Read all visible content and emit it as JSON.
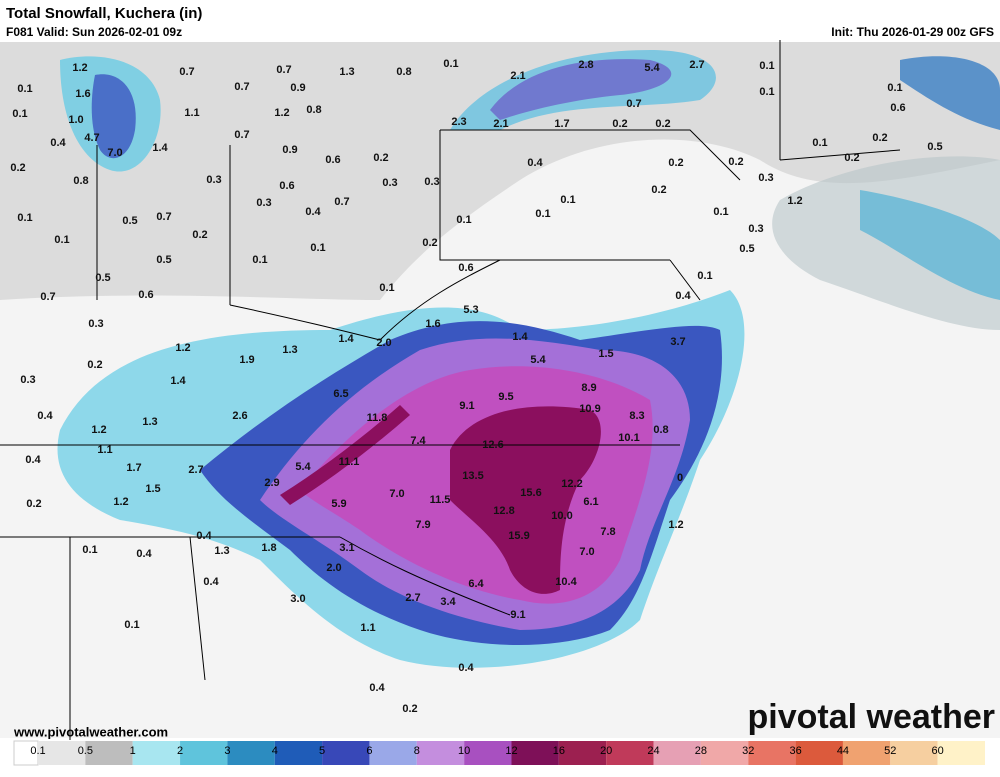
{
  "header": {
    "title": "Total Snowfall, Kuchera (in)",
    "valid": "F081 Valid: Sun 2026-02-01 09z",
    "init": "Init: Thu 2026-01-29 00z GFS"
  },
  "map": {
    "labels": [
      "1.2",
      "0.7",
      "0.7",
      "1.3",
      "0.8",
      "0.1",
      "2.1",
      "2.8",
      "5.4",
      "2.7",
      "0.1",
      "0.1",
      "1.6",
      "0.7",
      "0.9",
      "0.1",
      "0.1",
      "0.1",
      "1.0",
      "1.1",
      "1.2",
      "0.8",
      "0.7",
      "0.6",
      "0.4",
      "4.7",
      "2.3",
      "2.1",
      "1.7",
      "0.2",
      "0.2",
      "7.0",
      "1.4",
      "0.7",
      "0.9",
      "0.6",
      "0.2",
      "0.2",
      "0.1",
      "0.2",
      "0.5",
      "0.2",
      "0.8",
      "0.3",
      "0.6",
      "0.3",
      "0.3",
      "0.4",
      "0.2",
      "0.2",
      "0.3",
      "0.2",
      "0.1",
      "0.3",
      "0.4",
      "0.7",
      "1.2",
      "0.1",
      "0.5",
      "0.7",
      "0.1",
      "0.1",
      "0.1",
      "0.3",
      "0.2",
      "0.1",
      "0.1",
      "0.2",
      "0.5",
      "0.1",
      "0.5",
      "0.6",
      "0.1",
      "0.5",
      "0.1",
      "0.4",
      "0.7",
      "0.6",
      "5.3",
      "0.3",
      "1.6",
      "1.4",
      "2.0",
      "1.4",
      "3.7",
      "1.2",
      "1.3",
      "1.5",
      "0.2",
      "1.9",
      "5.4",
      "0.3",
      "1.4",
      "8.9",
      "6.5",
      "9.1",
      "9.5",
      "10.9",
      "0.4",
      "2.6",
      "11.8",
      "8.3",
      "1.3",
      "1.2",
      "0.8",
      "7.4",
      "12.6",
      "10.1",
      "1.1",
      "0.4",
      "11.1",
      "5.4",
      "1.7",
      "2.7",
      "13.5",
      "12.2",
      "0",
      "2.9",
      "1.5",
      "7.0",
      "15.6",
      "6.1",
      "0.2",
      "1.2",
      "11.5",
      "5.9",
      "12.8",
      "10.0",
      "1.2",
      "7.9",
      "7.8",
      "0.4",
      "1.8",
      "3.1",
      "15.9",
      "0.1",
      "0.4",
      "1.3",
      "7.0",
      "2.0",
      "0.4",
      "6.4",
      "10.4",
      "3.0",
      "2.7",
      "3.4",
      "9.1",
      "0.1",
      "1.1",
      "0.4",
      "0.4",
      "0.2"
    ]
  },
  "colorbar": {
    "ticks": [
      0.1,
      0.5,
      1,
      2,
      3,
      4,
      5,
      6,
      8,
      10,
      12,
      16,
      20,
      24,
      28,
      32,
      36,
      44,
      52,
      60
    ],
    "colors": [
      "#e6e6e6",
      "#bdbdbd",
      "#a8e6f0",
      "#5fc4dc",
      "#2c8cc0",
      "#1f5cb8",
      "#3848b8",
      "#9aa8e8",
      "#c48ede",
      "#a850c0",
      "#7e1058",
      "#9c2050",
      "#c03a5a",
      "#e6a0b4",
      "#f0a8a8",
      "#e87464",
      "#dc5a3c",
      "#f0a270",
      "#f6cfa0",
      "#fff2c8"
    ]
  },
  "footer": {
    "website": "www.pivotalweather.com",
    "logo": "pivotal weather"
  }
}
